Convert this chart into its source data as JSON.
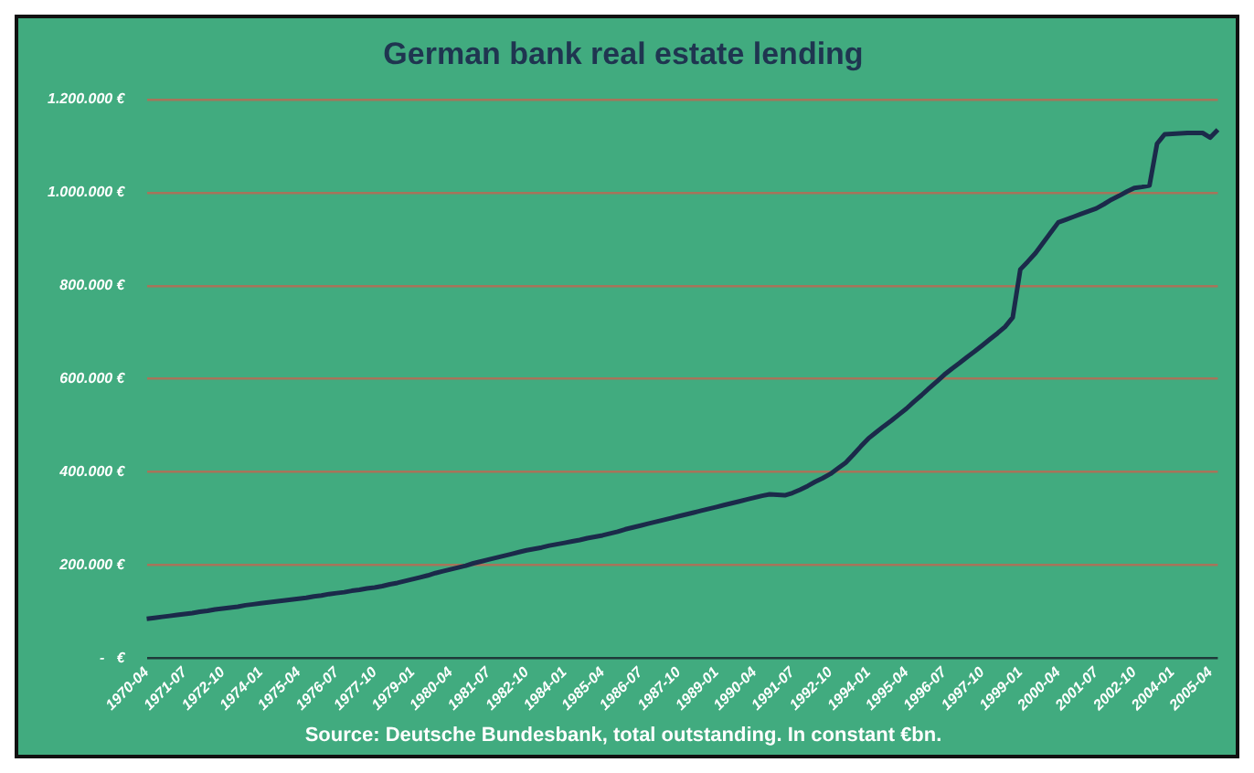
{
  "chart_data": {
    "type": "line",
    "title": "German bank real estate lending",
    "annotations": [
      "Source: Deutsche Bundesbank, total outstanding. In constant €bn."
    ],
    "categories": [
      "1970-04",
      null,
      null,
      null,
      null,
      "1971-07",
      null,
      null,
      null,
      null,
      "1972-10",
      null,
      null,
      null,
      null,
      "1974-01",
      null,
      null,
      null,
      null,
      "1975-04",
      null,
      null,
      null,
      null,
      "1976-07",
      null,
      null,
      null,
      null,
      "1977-10",
      null,
      null,
      null,
      null,
      "1979-01",
      null,
      null,
      null,
      null,
      "1980-04",
      null,
      null,
      null,
      null,
      "1981-07",
      null,
      null,
      null,
      null,
      "1982-10",
      null,
      null,
      null,
      null,
      "1984-01",
      null,
      null,
      null,
      null,
      "1985-04",
      null,
      null,
      null,
      null,
      "1986-07",
      null,
      null,
      null,
      null,
      "1987-10",
      null,
      null,
      null,
      null,
      "1989-01",
      null,
      null,
      null,
      null,
      "1990-04",
      null,
      null,
      null,
      null,
      "1991-07",
      null,
      null,
      null,
      null,
      "1992-10",
      null,
      null,
      null,
      null,
      "1994-01",
      null,
      null,
      null,
      null,
      "1995-04",
      null,
      null,
      null,
      null,
      "1996-07",
      null,
      null,
      null,
      null,
      "1997-10",
      null,
      null,
      null,
      null,
      "1999-01",
      null,
      null,
      null,
      null,
      "2000-04",
      null,
      null,
      null,
      null,
      "2001-07",
      null,
      null,
      null,
      null,
      "2002-10",
      null,
      null,
      null,
      null,
      "2004-01",
      null,
      null,
      null,
      null,
      "2005-04",
      null
    ],
    "series": [
      {
        "color": "#1b2a4a",
        "values": [
          85000,
          87000,
          89000,
          91000,
          93000,
          95000,
          97000,
          100000,
          102000,
          105000,
          107000,
          109000,
          111000,
          114000,
          116000,
          118000,
          120000,
          122000,
          124000,
          126000,
          128000,
          130000,
          133000,
          135000,
          138000,
          140000,
          142000,
          145000,
          147000,
          150000,
          152000,
          155000,
          159000,
          162000,
          166000,
          170000,
          174000,
          178000,
          183000,
          187000,
          191000,
          195000,
          199000,
          204000,
          208000,
          212000,
          216000,
          220000,
          224000,
          228000,
          232000,
          235000,
          238000,
          242000,
          245000,
          248000,
          251000,
          254000,
          258000,
          261000,
          264000,
          268000,
          272000,
          277000,
          281000,
          285000,
          289000,
          293000,
          297000,
          301000,
          305000,
          309000,
          313000,
          317000,
          321000,
          325000,
          329000,
          333000,
          337000,
          341000,
          345000,
          349000,
          352000,
          351000,
          350000,
          355000,
          362000,
          370000,
          379000,
          387000,
          396000,
          408000,
          420000,
          437000,
          455000,
          472000,
          485000,
          498000,
          510000,
          523000,
          536000,
          551000,
          565000,
          580000,
          594000,
          609000,
          622000,
          634000,
          647000,
          659000,
          672000,
          685000,
          698000,
          712000,
          732000,
          835000,
          852000,
          870000,
          892000,
          914000,
          936000,
          942000,
          948000,
          954000,
          960000,
          966000,
          975000,
          985000,
          993000,
          1002000,
          1010000,
          1012000,
          1015000,
          1105000,
          1125000,
          1126000,
          1127000,
          1128000,
          1128000,
          1128000,
          1118000,
          1135000
        ]
      }
    ],
    "ylim": [
      0,
      1200000
    ],
    "yticks": [
      {
        "value": 0,
        "label": "-   €"
      },
      {
        "value": 200000,
        "label": "200.000 €"
      },
      {
        "value": 400000,
        "label": "400.000 €"
      },
      {
        "value": 600000,
        "label": "600.000 €"
      },
      {
        "value": 800000,
        "label": "800.000 €"
      },
      {
        "value": 1000000,
        "label": "1.000.000 €"
      },
      {
        "value": 1200000,
        "label": "1.200.000 €"
      }
    ],
    "grid": "y",
    "line_style": "solid"
  }
}
